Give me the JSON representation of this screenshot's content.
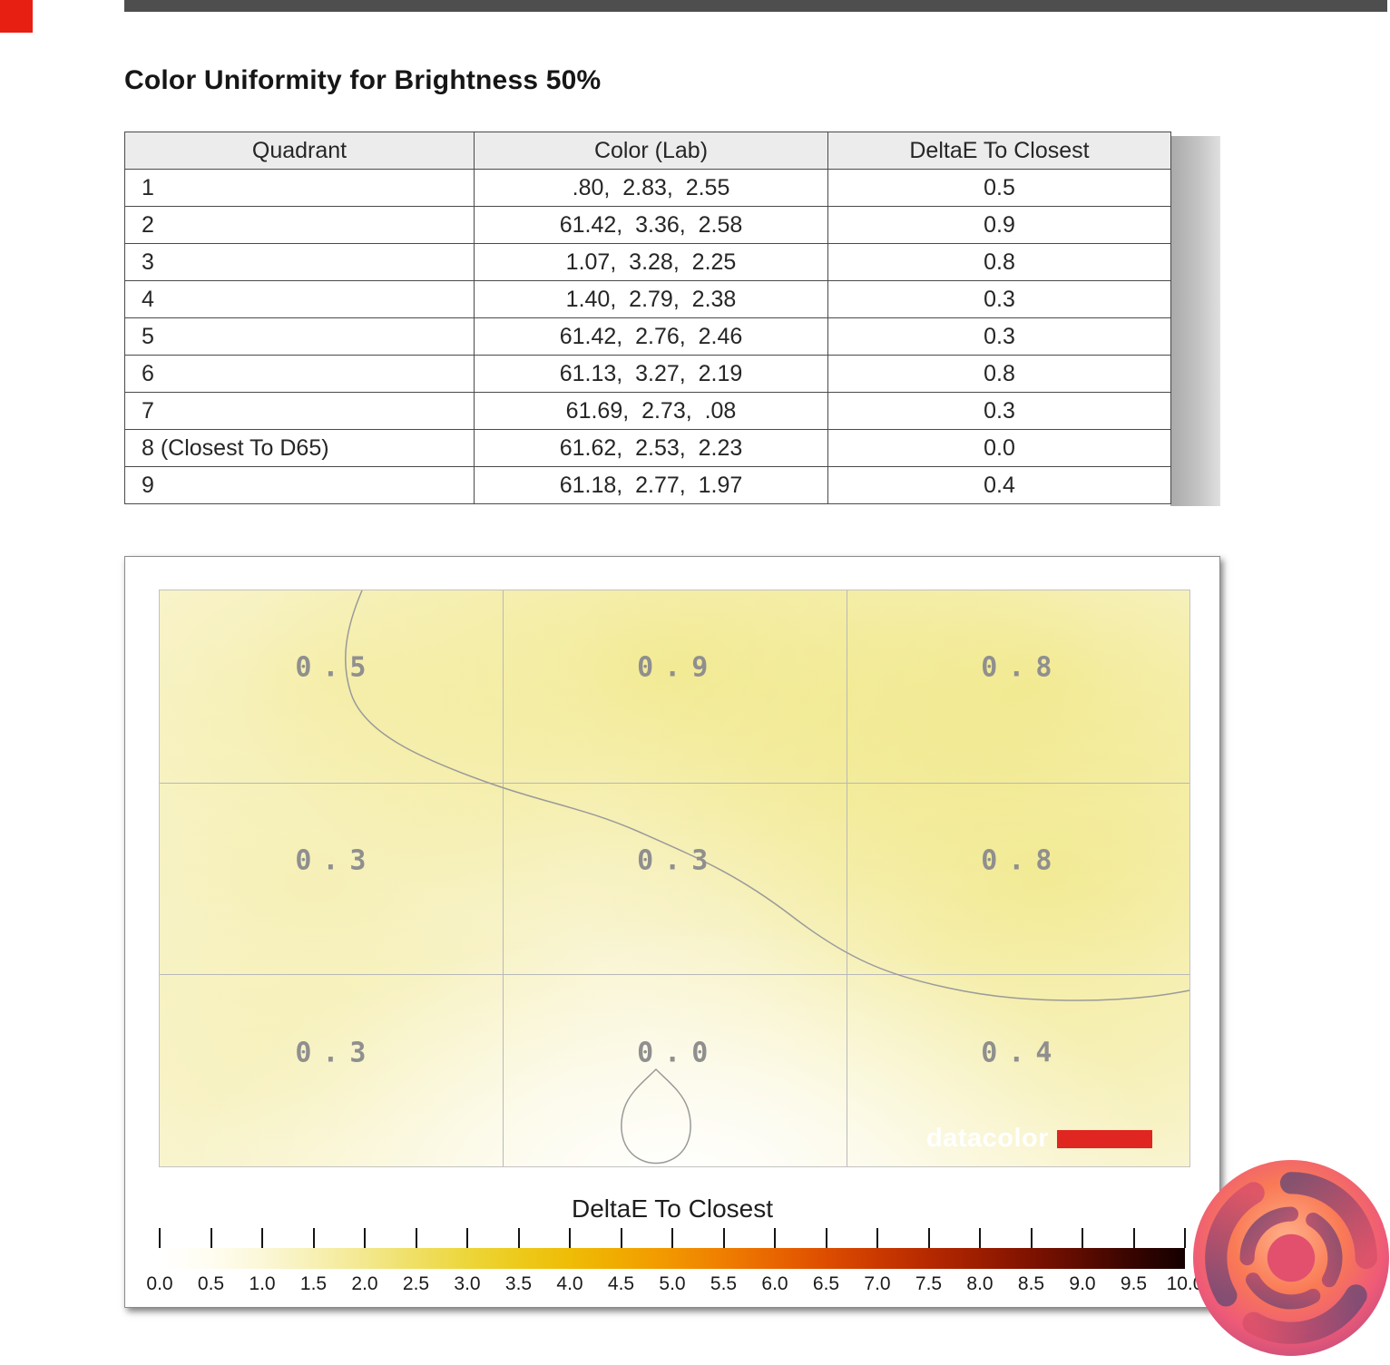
{
  "page": {
    "title": "Color Uniformity for Brightness 50%",
    "top_bar_color": "#4e4e4e",
    "accent_red": "#e71f13"
  },
  "table": {
    "columns": [
      "Quadrant",
      "Color (Lab)",
      "DeltaE To Closest"
    ],
    "rows": [
      {
        "quadrant": "1",
        "lab": ".80,  2.83,  2.55",
        "delta": "0.5"
      },
      {
        "quadrant": "2",
        "lab": "61.42,  3.36,  2.58",
        "delta": "0.9"
      },
      {
        "quadrant": "3",
        "lab": "1.07,  3.28,  2.25",
        "delta": "0.8"
      },
      {
        "quadrant": "4",
        "lab": "1.40,  2.79,  2.38",
        "delta": "0.3"
      },
      {
        "quadrant": "5",
        "lab": "61.42,  2.76,  2.46",
        "delta": "0.3"
      },
      {
        "quadrant": "6",
        "lab": "61.13,  3.27,  2.19",
        "delta": "0.8"
      },
      {
        "quadrant": "7",
        "lab": "61.69,  2.73,  .08",
        "delta": "0.3"
      },
      {
        "quadrant": "8 (Closest To D65)",
        "lab": "61.62,  2.53,  2.23",
        "delta": "0.0"
      },
      {
        "quadrant": "9",
        "lab": "61.18,  2.77,  1.97",
        "delta": "0.4"
      }
    ]
  },
  "chart_data": {
    "type": "heatmap",
    "title": "Color Uniformity for Brightness 50%",
    "heatmap": {
      "rows": 3,
      "cols": 3,
      "values": [
        [
          "0.5",
          "0.9",
          "0.8"
        ],
        [
          "0.3",
          "0.3",
          "0.8"
        ],
        [
          "0.3",
          "0.0",
          "0.4"
        ]
      ],
      "value_color": "#8f8f8f",
      "grid": "on"
    },
    "scale": {
      "label": "DeltaE To Closest",
      "min": 0,
      "max": 10,
      "tick_labels": [
        "0.0",
        "0.5",
        "1.0",
        "1.5",
        "2.0",
        "2.5",
        "3.0",
        "3.5",
        "4.0",
        "4.5",
        "5.0",
        "5.5",
        "6.0",
        "6.5",
        "7.0",
        "7.5",
        "8.0",
        "8.5",
        "9.0",
        "9.5",
        "10.0"
      ],
      "stops": [
        {
          "pos": 0,
          "color": "#ffffff"
        },
        {
          "pos": 5,
          "color": "#fffdf0"
        },
        {
          "pos": 10,
          "color": "#fbf7d8"
        },
        {
          "pos": 15,
          "color": "#f7f0b4"
        },
        {
          "pos": 20,
          "color": "#f3e88e"
        },
        {
          "pos": 25,
          "color": "#efdf63"
        },
        {
          "pos": 30,
          "color": "#edd63a"
        },
        {
          "pos": 35,
          "color": "#edca1b"
        },
        {
          "pos": 40,
          "color": "#efbc06"
        },
        {
          "pos": 45,
          "color": "#f1aa00"
        },
        {
          "pos": 50,
          "color": "#f29500"
        },
        {
          "pos": 55,
          "color": "#ef7e00"
        },
        {
          "pos": 60,
          "color": "#e96500"
        },
        {
          "pos": 65,
          "color": "#dd4d00"
        },
        {
          "pos": 70,
          "color": "#cb3900"
        },
        {
          "pos": 75,
          "color": "#b62900"
        },
        {
          "pos": 80,
          "color": "#9c1d00"
        },
        {
          "pos": 85,
          "color": "#7e1200"
        },
        {
          "pos": 90,
          "color": "#5c0b00"
        },
        {
          "pos": 95,
          "color": "#360400"
        },
        {
          "pos": 100,
          "color": "#140000"
        }
      ]
    },
    "branding": {
      "logo_text": "datacolor",
      "logo_bar_color": "#e02620"
    }
  }
}
